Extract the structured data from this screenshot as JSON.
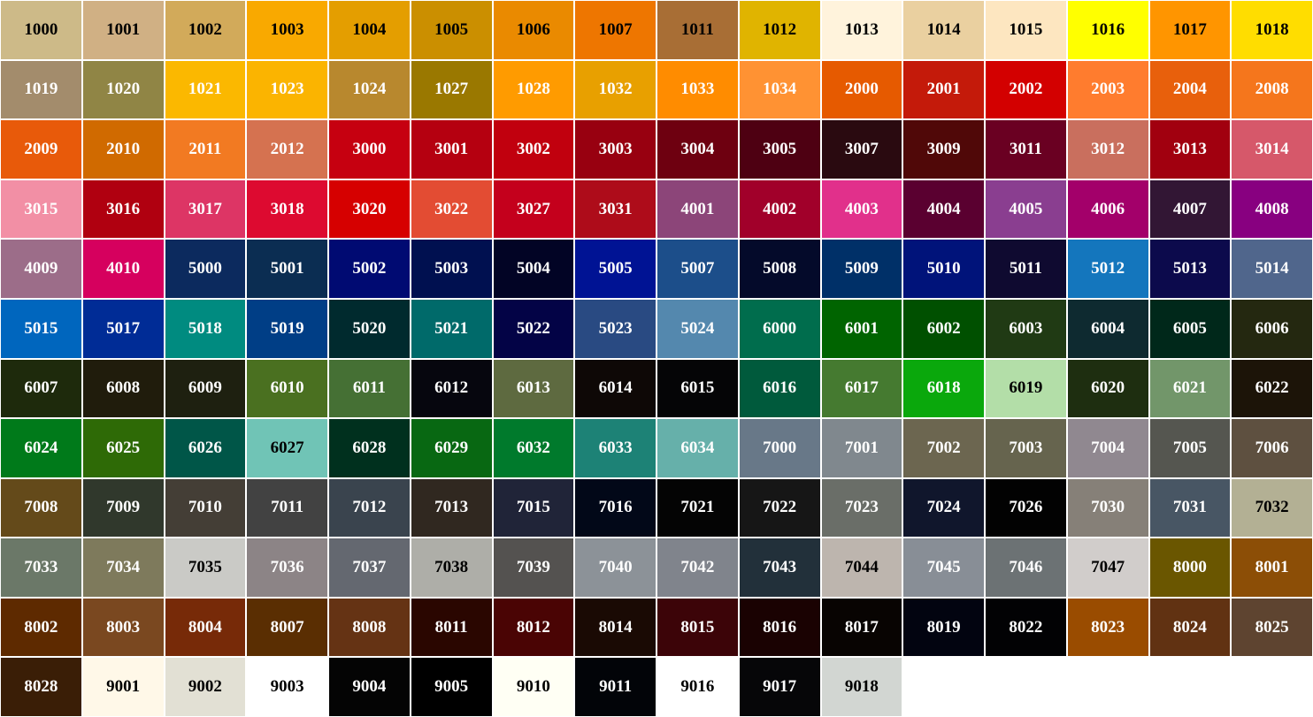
{
  "swatches": [
    {
      "code": "1000",
      "color": "#cdba88",
      "text": "#000"
    },
    {
      "code": "1001",
      "color": "#d0b084",
      "text": "#000"
    },
    {
      "code": "1002",
      "color": "#d2aa5a",
      "text": "#000"
    },
    {
      "code": "1003",
      "color": "#f9a900",
      "text": "#000"
    },
    {
      "code": "1004",
      "color": "#e49e00",
      "text": "#000"
    },
    {
      "code": "1005",
      "color": "#cb8f00",
      "text": "#000"
    },
    {
      "code": "1006",
      "color": "#ea8a00",
      "text": "#000"
    },
    {
      "code": "1007",
      "color": "#ee7600",
      "text": "#000"
    },
    {
      "code": "1011",
      "color": "#a86e35",
      "text": "#000"
    },
    {
      "code": "1012",
      "color": "#e0b400",
      "text": "#000"
    },
    {
      "code": "1013",
      "color": "#fff3dc",
      "text": "#000"
    },
    {
      "code": "1014",
      "color": "#ead0a0",
      "text": "#000"
    },
    {
      "code": "1015",
      "color": "#fde6c0",
      "text": "#000"
    },
    {
      "code": "1016",
      "color": "#ffff00",
      "text": "#000"
    },
    {
      "code": "1017",
      "color": "#ff9500",
      "text": "#000"
    },
    {
      "code": "1018",
      "color": "#ffdd00",
      "text": "#000"
    },
    {
      "code": "1019",
      "color": "#a38c6c",
      "text": "#fff"
    },
    {
      "code": "1020",
      "color": "#908545",
      "text": "#fff"
    },
    {
      "code": "1021",
      "color": "#fbb800",
      "text": "#fff"
    },
    {
      "code": "1023",
      "color": "#fbb400",
      "text": "#fff"
    },
    {
      "code": "1024",
      "color": "#b8882e",
      "text": "#fff"
    },
    {
      "code": "1027",
      "color": "#9a7800",
      "text": "#fff"
    },
    {
      "code": "1028",
      "color": "#ff9b00",
      "text": "#fff"
    },
    {
      "code": "1032",
      "color": "#e8a000",
      "text": "#fff"
    },
    {
      "code": "1033",
      "color": "#ff8c00",
      "text": "#fff"
    },
    {
      "code": "1034",
      "color": "#ff9233",
      "text": "#fff"
    },
    {
      "code": "2000",
      "color": "#e65a00",
      "text": "#fff"
    },
    {
      "code": "2001",
      "color": "#c41a0a",
      "text": "#fff"
    },
    {
      "code": "2002",
      "color": "#d30000",
      "text": "#fff"
    },
    {
      "code": "2003",
      "color": "#ff7c2e",
      "text": "#fff"
    },
    {
      "code": "2004",
      "color": "#e8600c",
      "text": "#fff"
    },
    {
      "code": "2008",
      "color": "#f5761c",
      "text": "#fff"
    },
    {
      "code": "2009",
      "color": "#e85a0a",
      "text": "#fff"
    },
    {
      "code": "2010",
      "color": "#d06a00",
      "text": "#fff"
    },
    {
      "code": "2011",
      "color": "#f27a22",
      "text": "#fff"
    },
    {
      "code": "2012",
      "color": "#d57250",
      "text": "#fff"
    },
    {
      "code": "3000",
      "color": "#c60010",
      "text": "#fff"
    },
    {
      "code": "3001",
      "color": "#b50010",
      "text": "#fff"
    },
    {
      "code": "3002",
      "color": "#c1000e",
      "text": "#fff"
    },
    {
      "code": "3003",
      "color": "#980010",
      "text": "#fff"
    },
    {
      "code": "3004",
      "color": "#6e0010",
      "text": "#fff"
    },
    {
      "code": "3005",
      "color": "#4e0012",
      "text": "#fff"
    },
    {
      "code": "3007",
      "color": "#2a0a10",
      "text": "#fff"
    },
    {
      "code": "3009",
      "color": "#500808",
      "text": "#fff"
    },
    {
      "code": "3011",
      "color": "#6a0022",
      "text": "#fff"
    },
    {
      "code": "3012",
      "color": "#c96f5e",
      "text": "#fff"
    },
    {
      "code": "3013",
      "color": "#a1000f",
      "text": "#fff"
    },
    {
      "code": "3014",
      "color": "#d6586a",
      "text": "#fff"
    },
    {
      "code": "3015",
      "color": "#f28fa5",
      "text": "#fff"
    },
    {
      "code": "3016",
      "color": "#b00010",
      "text": "#fff"
    },
    {
      "code": "3017",
      "color": "#dd3565",
      "text": "#fff"
    },
    {
      "code": "3018",
      "color": "#dd0a30",
      "text": "#fff"
    },
    {
      "code": "3020",
      "color": "#d60000",
      "text": "#fff"
    },
    {
      "code": "3022",
      "color": "#e34c33",
      "text": "#fff"
    },
    {
      "code": "3027",
      "color": "#c4001c",
      "text": "#fff"
    },
    {
      "code": "3031",
      "color": "#ae0c1a",
      "text": "#fff"
    },
    {
      "code": "4001",
      "color": "#8c4579",
      "text": "#fff"
    },
    {
      "code": "4002",
      "color": "#a1002a",
      "text": "#fff"
    },
    {
      "code": "4003",
      "color": "#e1308b",
      "text": "#fff"
    },
    {
      "code": "4004",
      "color": "#5a0030",
      "text": "#fff"
    },
    {
      "code": "4005",
      "color": "#8a3e90",
      "text": "#fff"
    },
    {
      "code": "4006",
      "color": "#a3006a",
      "text": "#fff"
    },
    {
      "code": "4007",
      "color": "#321634",
      "text": "#fff"
    },
    {
      "code": "4008",
      "color": "#880080",
      "text": "#fff"
    },
    {
      "code": "4009",
      "color": "#9c6d89",
      "text": "#fff"
    },
    {
      "code": "4010",
      "color": "#d6005e",
      "text": "#fff"
    },
    {
      "code": "5000",
      "color": "#0c2a5e",
      "text": "#fff"
    },
    {
      "code": "5001",
      "color": "#0b2d52",
      "text": "#fff"
    },
    {
      "code": "5002",
      "color": "#000a72",
      "text": "#fff"
    },
    {
      "code": "5003",
      "color": "#001050",
      "text": "#fff"
    },
    {
      "code": "5004",
      "color": "#020425",
      "text": "#fff"
    },
    {
      "code": "5005",
      "color": "#001394",
      "text": "#fff"
    },
    {
      "code": "5007",
      "color": "#1c4e8a",
      "text": "#fff"
    },
    {
      "code": "5008",
      "color": "#040a2a",
      "text": "#fff"
    },
    {
      "code": "5009",
      "color": "#003068",
      "text": "#fff"
    },
    {
      "code": "5010",
      "color": "#00137a",
      "text": "#fff"
    },
    {
      "code": "5011",
      "color": "#0f0a30",
      "text": "#fff"
    },
    {
      "code": "5012",
      "color": "#1476bd",
      "text": "#fff"
    },
    {
      "code": "5013",
      "color": "#0c0a4c",
      "text": "#fff"
    },
    {
      "code": "5014",
      "color": "#50668c",
      "text": "#fff"
    },
    {
      "code": "5015",
      "color": "#0066be",
      "text": "#fff"
    },
    {
      "code": "5017",
      "color": "#002c96",
      "text": "#fff"
    },
    {
      "code": "5018",
      "color": "#008b80",
      "text": "#fff"
    },
    {
      "code": "5019",
      "color": "#003e86",
      "text": "#fff"
    },
    {
      "code": "5020",
      "color": "#002a2e",
      "text": "#fff"
    },
    {
      "code": "5021",
      "color": "#006a6a",
      "text": "#fff"
    },
    {
      "code": "5022",
      "color": "#030346",
      "text": "#fff"
    },
    {
      "code": "5023",
      "color": "#294a82",
      "text": "#fff"
    },
    {
      "code": "5024",
      "color": "#5488ae",
      "text": "#fff"
    },
    {
      "code": "6000",
      "color": "#006d4d",
      "text": "#fff"
    },
    {
      "code": "6001",
      "color": "#006400",
      "text": "#fff"
    },
    {
      "code": "6002",
      "color": "#005000",
      "text": "#fff"
    },
    {
      "code": "6003",
      "color": "#203a14",
      "text": "#fff"
    },
    {
      "code": "6004",
      "color": "#0e2a30",
      "text": "#fff"
    },
    {
      "code": "6005",
      "color": "#00281a",
      "text": "#fff"
    },
    {
      "code": "6006",
      "color": "#242810",
      "text": "#fff"
    },
    {
      "code": "6007",
      "color": "#1e2a0c",
      "text": "#fff"
    },
    {
      "code": "6008",
      "color": "#201c0c",
      "text": "#fff"
    },
    {
      "code": "6009",
      "color": "#1e2010",
      "text": "#fff"
    },
    {
      "code": "6010",
      "color": "#4a7020",
      "text": "#fff"
    },
    {
      "code": "6011",
      "color": "#457034",
      "text": "#fff"
    },
    {
      "code": "6012",
      "color": "#06060e",
      "text": "#fff"
    },
    {
      "code": "6013",
      "color": "#5e6a40",
      "text": "#fff"
    },
    {
      "code": "6014",
      "color": "#0e0806",
      "text": "#fff"
    },
    {
      "code": "6015",
      "color": "#050506",
      "text": "#fff"
    },
    {
      "code": "6016",
      "color": "#005a3c",
      "text": "#fff"
    },
    {
      "code": "6017",
      "color": "#457a30",
      "text": "#fff"
    },
    {
      "code": "6018",
      "color": "#0aa80c",
      "text": "#fff"
    },
    {
      "code": "6019",
      "color": "#b3dea8",
      "text": "#000"
    },
    {
      "code": "6020",
      "color": "#1e2e10",
      "text": "#fff"
    },
    {
      "code": "6021",
      "color": "#72966a",
      "text": "#fff"
    },
    {
      "code": "6022",
      "color": "#1c1408",
      "text": "#fff"
    },
    {
      "code": "6024",
      "color": "#007a1a",
      "text": "#fff"
    },
    {
      "code": "6025",
      "color": "#2e6a06",
      "text": "#fff"
    },
    {
      "code": "6026",
      "color": "#005648",
      "text": "#fff"
    },
    {
      "code": "6027",
      "color": "#70c4b6",
      "text": "#000"
    },
    {
      "code": "6028",
      "color": "#00301e",
      "text": "#fff"
    },
    {
      "code": "6029",
      "color": "#086812",
      "text": "#fff"
    },
    {
      "code": "6032",
      "color": "#007a2c",
      "text": "#fff"
    },
    {
      "code": "6033",
      "color": "#1d8276",
      "text": "#fff"
    },
    {
      "code": "6034",
      "color": "#66b0aa",
      "text": "#fff"
    },
    {
      "code": "7000",
      "color": "#687888",
      "text": "#fff"
    },
    {
      "code": "7001",
      "color": "#80888e",
      "text": "#fff"
    },
    {
      "code": "7002",
      "color": "#6c6650",
      "text": "#fff"
    },
    {
      "code": "7003",
      "color": "#66644e",
      "text": "#fff"
    },
    {
      "code": "7004",
      "color": "#908890",
      "text": "#fff"
    },
    {
      "code": "7005",
      "color": "#555650",
      "text": "#fff"
    },
    {
      "code": "7006",
      "color": "#5e5040",
      "text": "#fff"
    },
    {
      "code": "7008",
      "color": "#644a1a",
      "text": "#fff"
    },
    {
      "code": "7009",
      "color": "#30382c",
      "text": "#fff"
    },
    {
      "code": "7010",
      "color": "#443e36",
      "text": "#fff"
    },
    {
      "code": "7011",
      "color": "#424242",
      "text": "#fff"
    },
    {
      "code": "7012",
      "color": "#3a444e",
      "text": "#fff"
    },
    {
      "code": "7013",
      "color": "#302820",
      "text": "#fff"
    },
    {
      "code": "7015",
      "color": "#202438",
      "text": "#fff"
    },
    {
      "code": "7016",
      "color": "#020818",
      "text": "#fff"
    },
    {
      "code": "7021",
      "color": "#040404",
      "text": "#fff"
    },
    {
      "code": "7022",
      "color": "#161616",
      "text": "#fff"
    },
    {
      "code": "7023",
      "color": "#6a6e68",
      "text": "#fff"
    },
    {
      "code": "7024",
      "color": "#10162c",
      "text": "#fff"
    },
    {
      "code": "7026",
      "color": "#020202",
      "text": "#fff"
    },
    {
      "code": "7030",
      "color": "#868078",
      "text": "#fff"
    },
    {
      "code": "7031",
      "color": "#485664",
      "text": "#fff"
    },
    {
      "code": "7032",
      "color": "#b3b094",
      "text": "#000"
    },
    {
      "code": "7033",
      "color": "#6b7868",
      "text": "#fff"
    },
    {
      "code": "7034",
      "color": "#7e7a5c",
      "text": "#fff"
    },
    {
      "code": "7035",
      "color": "#cacac6",
      "text": "#000"
    },
    {
      "code": "7036",
      "color": "#8c8486",
      "text": "#fff"
    },
    {
      "code": "7037",
      "color": "#646870",
      "text": "#fff"
    },
    {
      "code": "7038",
      "color": "#aeaea8",
      "text": "#000"
    },
    {
      "code": "7039",
      "color": "#545250",
      "text": "#fff"
    },
    {
      "code": "7040",
      "color": "#8c9298",
      "text": "#fff"
    },
    {
      "code": "7042",
      "color": "#80848c",
      "text": "#fff"
    },
    {
      "code": "7043",
      "color": "#22303a",
      "text": "#fff"
    },
    {
      "code": "7044",
      "color": "#bdb5ae",
      "text": "#000"
    },
    {
      "code": "7045",
      "color": "#888e96",
      "text": "#fff"
    },
    {
      "code": "7046",
      "color": "#6c7274",
      "text": "#fff"
    },
    {
      "code": "7047",
      "color": "#d1cdcb",
      "text": "#000"
    },
    {
      "code": "8000",
      "color": "#6a5600",
      "text": "#fff"
    },
    {
      "code": "8001",
      "color": "#8c4e06",
      "text": "#fff"
    },
    {
      "code": "8002",
      "color": "#5e2a00",
      "text": "#fff"
    },
    {
      "code": "8003",
      "color": "#7a4820",
      "text": "#fff"
    },
    {
      "code": "8004",
      "color": "#772a08",
      "text": "#fff"
    },
    {
      "code": "8007",
      "color": "#5a2e02",
      "text": "#fff"
    },
    {
      "code": "8008",
      "color": "#653314",
      "text": "#fff"
    },
    {
      "code": "8011",
      "color": "#2a0600",
      "text": "#fff"
    },
    {
      "code": "8012",
      "color": "#4a0404",
      "text": "#fff"
    },
    {
      "code": "8014",
      "color": "#1a0a04",
      "text": "#fff"
    },
    {
      "code": "8015",
      "color": "#3c0408",
      "text": "#fff"
    },
    {
      "code": "8016",
      "color": "#1a0202",
      "text": "#fff"
    },
    {
      "code": "8017",
      "color": "#080402",
      "text": "#fff"
    },
    {
      "code": "8019",
      "color": "#020410",
      "text": "#fff"
    },
    {
      "code": "8022",
      "color": "#020204",
      "text": "#fff"
    },
    {
      "code": "8023",
      "color": "#9a4c00",
      "text": "#fff"
    },
    {
      "code": "8024",
      "color": "#613212",
      "text": "#fff"
    },
    {
      "code": "8025",
      "color": "#5e4430",
      "text": "#fff"
    },
    {
      "code": "8028",
      "color": "#3a1e06",
      "text": "#fff"
    },
    {
      "code": "9001",
      "color": "#fff8e8",
      "text": "#000"
    },
    {
      "code": "9002",
      "color": "#e2e0d4",
      "text": "#000"
    },
    {
      "code": "9003",
      "color": "#ffffff",
      "text": "#000"
    },
    {
      "code": "9004",
      "color": "#040404",
      "text": "#fff"
    },
    {
      "code": "9005",
      "color": "#000000",
      "text": "#fff"
    },
    {
      "code": "9010",
      "color": "#fffff4",
      "text": "#000"
    },
    {
      "code": "9011",
      "color": "#020408",
      "text": "#fff"
    },
    {
      "code": "9016",
      "color": "#ffffff",
      "text": "#000"
    },
    {
      "code": "9017",
      "color": "#060608",
      "text": "#fff"
    },
    {
      "code": "9018",
      "color": "#d2d6d2",
      "text": "#000"
    }
  ]
}
